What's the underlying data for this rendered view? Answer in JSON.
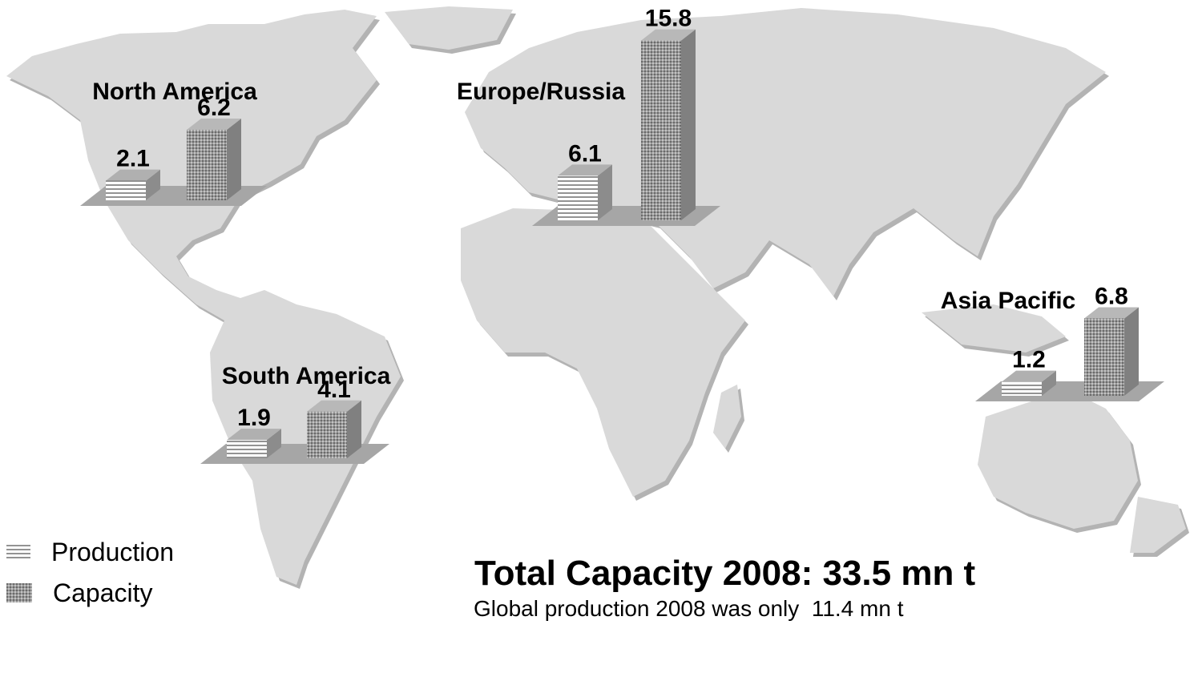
{
  "chart_data": {
    "type": "bar",
    "categories": [
      "North America",
      "Europe/Russia",
      "South America",
      "Asia Pacific"
    ],
    "series": [
      {
        "name": "Production",
        "values": [
          2.1,
          6.1,
          1.9,
          1.2
        ],
        "pattern": "horizontal-lines"
      },
      {
        "name": "Capacity",
        "values": [
          6.2,
          15.8,
          4.1,
          6.8
        ],
        "pattern": "dotted-gray"
      }
    ],
    "value_labels": {
      "Production": [
        "2.1",
        "6.1",
        "1.9",
        "1.2"
      ],
      "Capacity": [
        "6.2",
        "15.8",
        "4.1",
        "6.8"
      ]
    },
    "legend": {
      "placement": "bottom-left",
      "entries": [
        "Production",
        "Capacity"
      ]
    },
    "background": "world-map",
    "colors": {
      "map": "#d9d9d9",
      "map_shadow": "#a6a6a6",
      "base": "#a6a6a6",
      "capacity_front": "#999999",
      "capacity_side": "#808080",
      "production_front": "#ffffff",
      "production_lines": "#595959"
    }
  },
  "summary": {
    "title": "Total Capacity 2008: 33.5 mn t",
    "subtitle": "Global production 2008 was only  11.4 mn t"
  }
}
